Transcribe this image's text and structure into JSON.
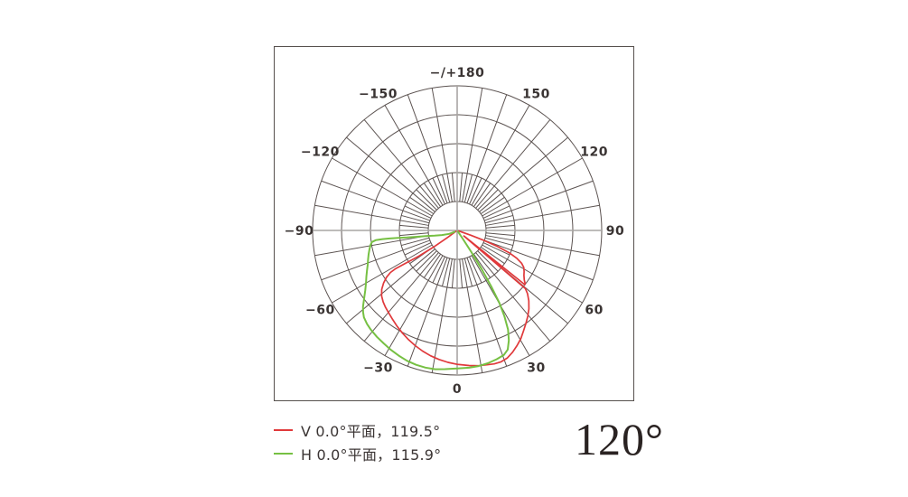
{
  "chart_data": {
    "type": "line",
    "subtype": "polar-photometric",
    "title": "",
    "radial_scale": "relative intensity, rings every 0.2 up to 1.0 at outer circle",
    "angle_convention": "0 at bottom, positive clockwise to +180 at top, negative counterclockwise",
    "grid": {
      "rings_rel": [
        0.2,
        0.4,
        0.6,
        0.8,
        1.0
      ],
      "spoke_step_deg": 10,
      "spoke_extent_rel": [
        0.2,
        1.0
      ],
      "fine_spoke_step_deg": 5,
      "fine_spoke_extent_rel": [
        0.2,
        0.4
      ],
      "axes_cross_deg": [
        0,
        90
      ]
    },
    "angle_tick_labels": [
      {
        "angle": 180,
        "label": "−/+180"
      },
      {
        "angle": 150,
        "label": "150"
      },
      {
        "angle": 120,
        "label": "120"
      },
      {
        "angle": 90,
        "label": "90"
      },
      {
        "angle": 60,
        "label": "60"
      },
      {
        "angle": 30,
        "label": "30"
      },
      {
        "angle": 0,
        "label": "0"
      },
      {
        "angle": -30,
        "label": "−30"
      },
      {
        "angle": -60,
        "label": "−60"
      },
      {
        "angle": -90,
        "label": "−90"
      },
      {
        "angle": -120,
        "label": "−120"
      },
      {
        "angle": -150,
        "label": "−150"
      }
    ],
    "legend": [
      {
        "label": "V 0.0°平面，119.5°",
        "color": "#e0393b"
      },
      {
        "label": "H 0.0°平面，115.9°",
        "color": "#76c043"
      }
    ],
    "series": [
      {
        "name": "V 0.0°平面",
        "beam_angle_deg": 119.5,
        "color": "#e0393b",
        "stroke_width": 1.7,
        "points_deg_r": [
          [
            71.5,
            0.01
          ],
          [
            70.5,
            0.1
          ],
          [
            69.5,
            0.2
          ],
          [
            68.3,
            0.3
          ],
          [
            66.8,
            0.39
          ],
          [
            65,
            0.455
          ],
          [
            63,
            0.5
          ],
          [
            61,
            0.527
          ],
          [
            58.5,
            0.543
          ],
          [
            56,
            0.557
          ],
          [
            53.5,
            0.578
          ],
          [
            52,
            0.597
          ],
          [
            51.3,
            0.6
          ],
          [
            50.6,
            0.06
          ],
          [
            49.6,
            0.62
          ],
          [
            48,
            0.655
          ],
          [
            45.5,
            0.695
          ],
          [
            42.5,
            0.735
          ],
          [
            39.5,
            0.768
          ],
          [
            36.5,
            0.8
          ],
          [
            33.5,
            0.832
          ],
          [
            30.5,
            0.868
          ],
          [
            27.5,
            0.898
          ],
          [
            24.5,
            0.925
          ],
          [
            21.5,
            0.948
          ],
          [
            18.5,
            0.958
          ],
          [
            15.5,
            0.958
          ],
          [
            12.5,
            0.952
          ],
          [
            9,
            0.947
          ],
          [
            5,
            0.938
          ],
          [
            0,
            0.926
          ],
          [
            -4,
            0.915
          ],
          [
            -8,
            0.901
          ],
          [
            -12,
            0.886
          ],
          [
            -16,
            0.868
          ],
          [
            -20,
            0.848
          ],
          [
            -24,
            0.827
          ],
          [
            -28,
            0.805
          ],
          [
            -32,
            0.783
          ],
          [
            -36,
            0.76
          ],
          [
            -40,
            0.74
          ],
          [
            -43,
            0.727
          ],
          [
            -46,
            0.712
          ],
          [
            -49,
            0.692
          ],
          [
            -52,
            0.662
          ],
          [
            -54.5,
            0.625
          ],
          [
            -56.5,
            0.585
          ],
          [
            -57.8,
            0.545
          ],
          [
            -58.2,
            0.5
          ],
          [
            -57.5,
            0.42
          ],
          [
            -56.2,
            0.32
          ],
          [
            -54.8,
            0.2
          ],
          [
            -53.5,
            0.08
          ],
          [
            -53,
            0.01
          ]
        ]
      },
      {
        "name": "H 0.0°平面",
        "beam_angle_deg": 115.9,
        "color": "#76c043",
        "stroke_width": 2,
        "points_deg_r": [
          [
            34.5,
            0.01
          ],
          [
            34,
            0.06
          ],
          [
            33.2,
            0.18
          ],
          [
            32.3,
            0.32
          ],
          [
            31.3,
            0.46
          ],
          [
            30.2,
            0.58
          ],
          [
            28.8,
            0.68
          ],
          [
            27.2,
            0.77
          ],
          [
            25.2,
            0.84
          ],
          [
            23,
            0.895
          ],
          [
            20.5,
            0.92
          ],
          [
            17,
            0.932
          ],
          [
            13,
            0.943
          ],
          [
            9,
            0.95
          ],
          [
            5,
            0.953
          ],
          [
            0,
            0.955
          ],
          [
            -5,
            0.963
          ],
          [
            -9,
            0.972
          ],
          [
            -13,
            0.974
          ],
          [
            -17,
            0.972
          ],
          [
            -21,
            0.966
          ],
          [
            -25,
            0.956
          ],
          [
            -29,
            0.945
          ],
          [
            -33,
            0.932
          ],
          [
            -37,
            0.922
          ],
          [
            -41,
            0.91
          ],
          [
            -44,
            0.898
          ],
          [
            -47,
            0.882
          ],
          [
            -49,
            0.862
          ],
          [
            -51,
            0.838
          ],
          [
            -54,
            0.795
          ],
          [
            -57,
            0.758
          ],
          [
            -60,
            0.728
          ],
          [
            -63,
            0.705
          ],
          [
            -66,
            0.683
          ],
          [
            -69,
            0.663
          ],
          [
            -72,
            0.648
          ],
          [
            -75,
            0.634
          ],
          [
            -78,
            0.62
          ],
          [
            -80.5,
            0.608
          ],
          [
            -82.3,
            0.595
          ],
          [
            -83.2,
            0.568
          ],
          [
            -83.4,
            0.52
          ],
          [
            -83.2,
            0.47
          ],
          [
            -82.8,
            0.41
          ],
          [
            -82,
            0.35
          ],
          [
            -81,
            0.28
          ],
          [
            -79.8,
            0.22
          ],
          [
            -77,
            0.16
          ],
          [
            -73,
            0.11
          ],
          [
            -67,
            0.06
          ],
          [
            -60,
            0.02
          ]
        ]
      }
    ],
    "colors": {
      "grid": "#5d5452",
      "axis": "#a8a5a3",
      "tick_label": "#3a3433",
      "frame": "#56504d"
    }
  },
  "footer": {
    "beam_angle_label": "120°"
  }
}
